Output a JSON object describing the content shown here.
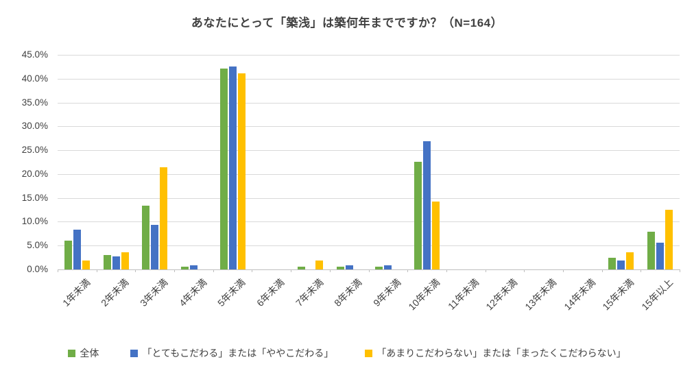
{
  "title": "あなたにとって「築浅」は築何年までですか？（N=164）",
  "colors": {
    "series_green": "#70AD47",
    "series_blue": "#4472C4",
    "series_yellow": "#FFC000",
    "gridline": "#D9D9D9",
    "axis_line": "#BFBFBF",
    "text": "#404040"
  },
  "chart_data": {
    "type": "bar",
    "title": "あなたにとって「築浅」は築何年までですか？（N=164）",
    "categories": [
      "1年未満",
      "2年未満",
      "3年未満",
      "4年未満",
      "5年未満",
      "6年未満",
      "7年未満",
      "8年未満",
      "9年未満",
      "10年未満",
      "11年未満",
      "12年未満",
      "13年未満",
      "14年未満",
      "15年未満",
      "15年以上"
    ],
    "series": [
      {
        "name": "全体",
        "color": "#70AD47",
        "values": [
          6.1,
          3.0,
          13.4,
          0.6,
          42.1,
          0,
          0.6,
          0.6,
          0.6,
          22.6,
          0,
          0,
          0,
          0,
          2.4,
          7.9
        ]
      },
      {
        "name": "「とてもこだわる」または「ややこだわる」",
        "color": "#4472C4",
        "values": [
          8.3,
          2.8,
          9.3,
          0.9,
          42.6,
          0,
          0,
          0.9,
          0.9,
          26.9,
          0,
          0,
          0,
          0,
          1.9,
          5.6
        ]
      },
      {
        "name": "「あまりこだわらない」または「まったくこだわらない」",
        "color": "#FFC000",
        "values": [
          1.8,
          3.6,
          21.4,
          0,
          41.1,
          0,
          1.8,
          0,
          0,
          14.3,
          0,
          0,
          0,
          0,
          3.6,
          12.5
        ]
      }
    ],
    "xlabel": "",
    "ylabel": "",
    "ylim": [
      0,
      45
    ],
    "ytick_step": 5,
    "ytick_labels": [
      "0.0%",
      "5.0%",
      "10.0%",
      "15.0%",
      "20.0%",
      "25.0%",
      "30.0%",
      "35.0%",
      "40.0%",
      "45.0%"
    ],
    "grid": true,
    "legend_position": "bottom",
    "x_label_rotation_deg": 45
  }
}
